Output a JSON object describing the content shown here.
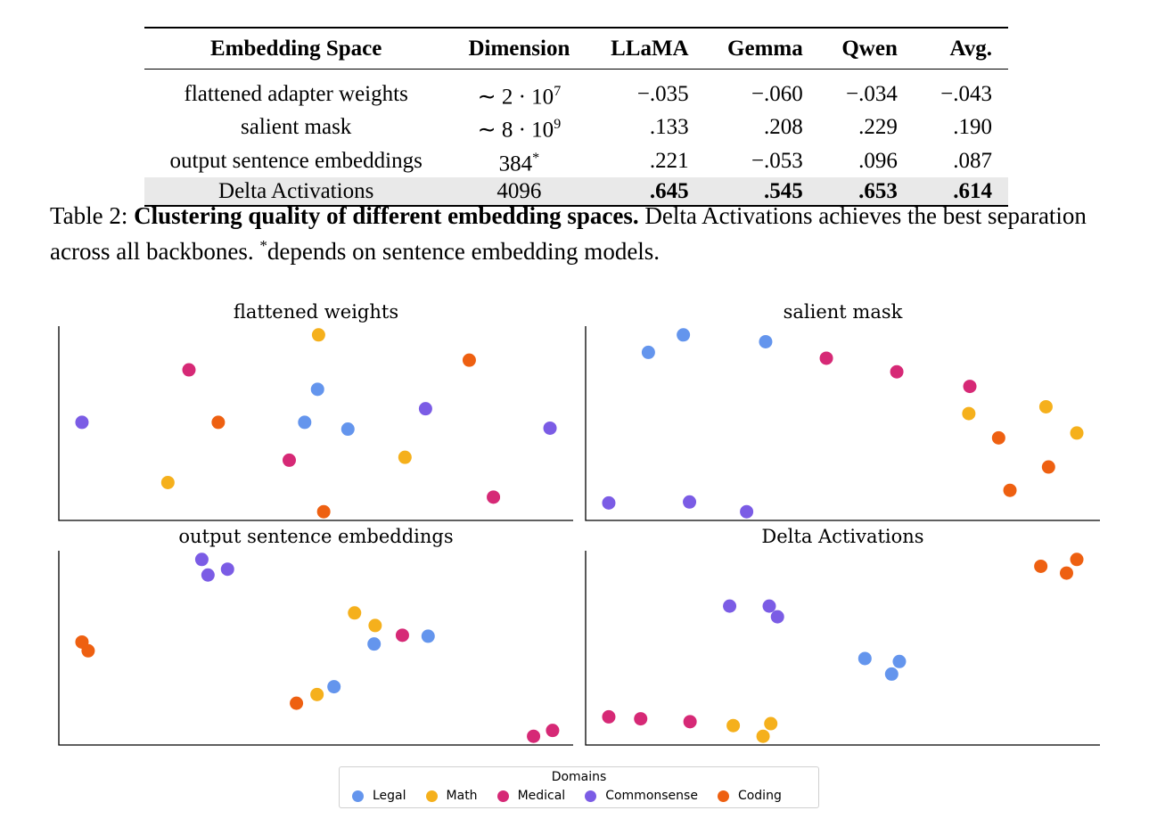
{
  "table": {
    "headers": [
      "Embedding Space",
      "Dimension",
      "LLaMA",
      "Gemma",
      "Qwen",
      "Avg."
    ],
    "rows": [
      {
        "space": "flattened adapter weights",
        "dim_base": "∼ 2 · 10",
        "dim_sup": "7",
        "llama": "−.035",
        "gemma": "−.060",
        "qwen": "−.034",
        "avg": "−.043"
      },
      {
        "space": "salient mask",
        "dim_base": "∼ 8 · 10",
        "dim_sup": "9",
        "llama": ".133",
        "gemma": ".208",
        "qwen": ".229",
        "avg": ".190"
      },
      {
        "space": "output sentence embeddings",
        "dim_base": "384",
        "dim_sup": "*",
        "llama": ".221",
        "gemma": "−.053",
        "qwen": ".096",
        "avg": ".087"
      },
      {
        "space": "Delta Activations",
        "dim_base": "4096",
        "dim_sup": "",
        "llama": ".645",
        "gemma": ".545",
        "qwen": ".653",
        "avg": ".614"
      }
    ]
  },
  "caption": {
    "label": "Table 2:",
    "bold": "Clustering quality of different embedding spaces.",
    "text_1": " Delta Activations achieves the best separation across all backbones. ",
    "sup": "*",
    "text_2": "depends on sentence embedding models."
  },
  "legend": {
    "title": "Domains",
    "items": [
      {
        "name": "Legal",
        "color": "#6495ed"
      },
      {
        "name": "Math",
        "color": "#f5b01c"
      },
      {
        "name": "Medical",
        "color": "#d62976"
      },
      {
        "name": "Commonsense",
        "color": "#7b5ce5"
      },
      {
        "name": "Coding",
        "color": "#ee6011"
      }
    ]
  },
  "chart_data": [
    {
      "type": "scatter",
      "title": "flattened weights",
      "xlim": [
        0,
        100
      ],
      "ylim": [
        0,
        100
      ],
      "points": [
        {
          "domain": "Math",
          "x": 50.5,
          "y": 95.5
        },
        {
          "domain": "Coding",
          "x": 79.8,
          "y": 82.5
        },
        {
          "domain": "Medical",
          "x": 25.3,
          "y": 77.5
        },
        {
          "domain": "Legal",
          "x": 50.3,
          "y": 67.5
        },
        {
          "domain": "Commonsense",
          "x": 71.3,
          "y": 57.5
        },
        {
          "domain": "Commonsense",
          "x": 4.5,
          "y": 50.5
        },
        {
          "domain": "Coding",
          "x": 31.0,
          "y": 50.5
        },
        {
          "domain": "Legal",
          "x": 47.8,
          "y": 50.5
        },
        {
          "domain": "Legal",
          "x": 56.2,
          "y": 47.0
        },
        {
          "domain": "Commonsense",
          "x": 95.5,
          "y": 47.5
        },
        {
          "domain": "Math",
          "x": 67.3,
          "y": 32.5
        },
        {
          "domain": "Medical",
          "x": 44.8,
          "y": 31.0
        },
        {
          "domain": "Math",
          "x": 21.2,
          "y": 19.5
        },
        {
          "domain": "Medical",
          "x": 84.5,
          "y": 12.0
        },
        {
          "domain": "Coding",
          "x": 51.5,
          "y": 4.5
        }
      ]
    },
    {
      "type": "scatter",
      "title": "salient mask",
      "xlim": [
        0,
        100
      ],
      "ylim": [
        0,
        100
      ],
      "points": [
        {
          "domain": "Legal",
          "x": 19.0,
          "y": 95.5
        },
        {
          "domain": "Legal",
          "x": 12.2,
          "y": 86.5
        },
        {
          "domain": "Legal",
          "x": 35.0,
          "y": 92.0
        },
        {
          "domain": "Medical",
          "x": 46.8,
          "y": 83.5
        },
        {
          "domain": "Medical",
          "x": 60.5,
          "y": 76.5
        },
        {
          "domain": "Medical",
          "x": 74.7,
          "y": 69.0
        },
        {
          "domain": "Math",
          "x": 74.5,
          "y": 55.0
        },
        {
          "domain": "Math",
          "x": 89.5,
          "y": 58.5
        },
        {
          "domain": "Math",
          "x": 95.5,
          "y": 45.0
        },
        {
          "domain": "Coding",
          "x": 80.3,
          "y": 42.5
        },
        {
          "domain": "Coding",
          "x": 90.0,
          "y": 27.5
        },
        {
          "domain": "Coding",
          "x": 82.5,
          "y": 15.5
        },
        {
          "domain": "Commonsense",
          "x": 4.5,
          "y": 9.0
        },
        {
          "domain": "Commonsense",
          "x": 20.2,
          "y": 9.5
        },
        {
          "domain": "Commonsense",
          "x": 31.3,
          "y": 4.5
        }
      ]
    },
    {
      "type": "scatter",
      "title": "output sentence embeddings",
      "xlim": [
        0,
        100
      ],
      "ylim": [
        0,
        100
      ],
      "points": [
        {
          "domain": "Commonsense",
          "x": 27.8,
          "y": 95.5
        },
        {
          "domain": "Commonsense",
          "x": 32.8,
          "y": 90.5
        },
        {
          "domain": "Commonsense",
          "x": 29.0,
          "y": 87.5
        },
        {
          "domain": "Math",
          "x": 57.5,
          "y": 68.0
        },
        {
          "domain": "Math",
          "x": 61.5,
          "y": 61.5
        },
        {
          "domain": "Medical",
          "x": 66.8,
          "y": 56.5
        },
        {
          "domain": "Legal",
          "x": 71.8,
          "y": 56.0
        },
        {
          "domain": "Legal",
          "x": 61.3,
          "y": 52.0
        },
        {
          "domain": "Coding",
          "x": 4.5,
          "y": 53.0
        },
        {
          "domain": "Coding",
          "x": 5.7,
          "y": 48.5
        },
        {
          "domain": "Legal",
          "x": 53.5,
          "y": 30.0
        },
        {
          "domain": "Math",
          "x": 50.2,
          "y": 26.0
        },
        {
          "domain": "Coding",
          "x": 46.2,
          "y": 21.5
        },
        {
          "domain": "Medical",
          "x": 96.0,
          "y": 7.5
        },
        {
          "domain": "Medical",
          "x": 92.3,
          "y": 4.5
        }
      ]
    },
    {
      "type": "scatter",
      "title": "Delta Activations",
      "xlim": [
        0,
        100
      ],
      "ylim": [
        0,
        100
      ],
      "points": [
        {
          "domain": "Coding",
          "x": 95.5,
          "y": 95.5
        },
        {
          "domain": "Coding",
          "x": 88.5,
          "y": 92.0
        },
        {
          "domain": "Coding",
          "x": 93.5,
          "y": 88.5
        },
        {
          "domain": "Commonsense",
          "x": 28.0,
          "y": 71.5
        },
        {
          "domain": "Commonsense",
          "x": 35.7,
          "y": 71.5
        },
        {
          "domain": "Commonsense",
          "x": 37.3,
          "y": 66.0
        },
        {
          "domain": "Legal",
          "x": 54.3,
          "y": 44.5
        },
        {
          "domain": "Legal",
          "x": 61.0,
          "y": 43.0
        },
        {
          "domain": "Legal",
          "x": 59.5,
          "y": 36.5
        },
        {
          "domain": "Medical",
          "x": 4.5,
          "y": 14.5
        },
        {
          "domain": "Medical",
          "x": 10.7,
          "y": 13.5
        },
        {
          "domain": "Medical",
          "x": 20.3,
          "y": 12.0
        },
        {
          "domain": "Math",
          "x": 28.7,
          "y": 10.0
        },
        {
          "domain": "Math",
          "x": 36.0,
          "y": 11.0
        },
        {
          "domain": "Math",
          "x": 34.5,
          "y": 4.5
        }
      ]
    }
  ]
}
